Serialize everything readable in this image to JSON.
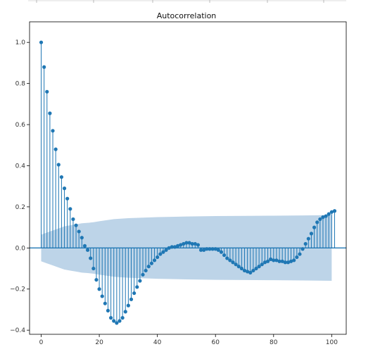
{
  "chart_data": {
    "type": "stem",
    "title": "Autocorrelation",
    "xlabel": "",
    "ylabel": "",
    "xlim": [
      -4,
      105
    ],
    "ylim": [
      -0.42,
      1.1
    ],
    "xticks": [
      0,
      20,
      40,
      60,
      80,
      100
    ],
    "yticks": [
      -0.4,
      -0.2,
      0.0,
      0.2,
      0.4,
      0.6,
      0.8,
      1.0
    ],
    "ytick_labels": [
      "−0.4",
      "−0.2",
      "0.0",
      "0.2",
      "0.4",
      "0.6",
      "0.8",
      "1.0"
    ],
    "grid": false,
    "colors": {
      "stem": "#1f77b4",
      "band": "#b9d2e7",
      "axis": "#000000"
    },
    "acf": [
      1.0,
      0.88,
      0.76,
      0.655,
      0.57,
      0.48,
      0.405,
      0.345,
      0.29,
      0.24,
      0.19,
      0.14,
      0.11,
      0.08,
      0.05,
      0.01,
      -0.01,
      -0.05,
      -0.1,
      -0.155,
      -0.2,
      -0.235,
      -0.27,
      -0.305,
      -0.34,
      -0.355,
      -0.365,
      -0.355,
      -0.34,
      -0.31,
      -0.28,
      -0.25,
      -0.22,
      -0.19,
      -0.16,
      -0.13,
      -0.11,
      -0.09,
      -0.075,
      -0.06,
      -0.045,
      -0.03,
      -0.02,
      -0.01,
      0.0,
      0.005,
      0.005,
      0.01,
      0.015,
      0.02,
      0.025,
      0.025,
      0.02,
      0.02,
      0.015,
      -0.01,
      -0.01,
      -0.005,
      -0.005,
      -0.005,
      -0.005,
      -0.01,
      -0.02,
      -0.035,
      -0.05,
      -0.06,
      -0.07,
      -0.08,
      -0.09,
      -0.1,
      -0.11,
      -0.115,
      -0.12,
      -0.11,
      -0.1,
      -0.09,
      -0.08,
      -0.07,
      -0.065,
      -0.055,
      -0.06,
      -0.06,
      -0.065,
      -0.065,
      -0.07,
      -0.07,
      -0.065,
      -0.06,
      -0.045,
      -0.03,
      -0.005,
      0.02,
      0.045,
      0.07,
      0.1,
      0.125,
      0.14,
      0.15,
      0.155,
      0.165,
      0.175,
      0.18
    ],
    "confidence_band": {
      "x": [
        0,
        2,
        4,
        6,
        8,
        10,
        12,
        14,
        16,
        18,
        20,
        25,
        30,
        40,
        50,
        60,
        70,
        80,
        90,
        100
      ],
      "upper": [
        0.065,
        0.075,
        0.085,
        0.095,
        0.105,
        0.11,
        0.115,
        0.12,
        0.122,
        0.125,
        0.13,
        0.14,
        0.145,
        0.15,
        0.153,
        0.155,
        0.156,
        0.157,
        0.158,
        0.16
      ],
      "lower": [
        -0.065,
        -0.075,
        -0.085,
        -0.095,
        -0.105,
        -0.11,
        -0.115,
        -0.12,
        -0.122,
        -0.125,
        -0.13,
        -0.14,
        -0.145,
        -0.15,
        -0.153,
        -0.155,
        -0.156,
        -0.157,
        -0.158,
        -0.16
      ]
    }
  }
}
